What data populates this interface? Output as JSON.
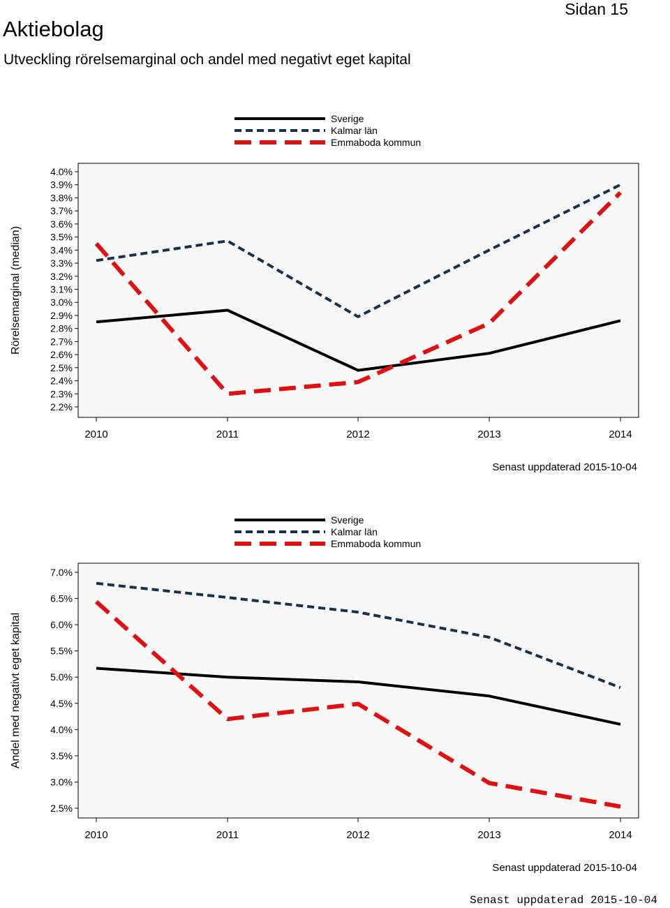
{
  "header": {
    "title": "Aktiebolag",
    "page_label": "Sidan 15",
    "subtitle": "Utveckling rörelsemarginal och andel med negativt eget kapital"
  },
  "footer": {
    "stamp": "Senast uppdaterad 2015-10-04"
  },
  "colors": {
    "sverige": "#000000",
    "kalmar": "#17324f",
    "emmaboda": "#e01010",
    "plot_bg": "#f8f8f8"
  },
  "chart_data": [
    {
      "type": "line",
      "title": "",
      "ylabel": "Rörelsemarginal (median)",
      "xlabel": "",
      "ylim": [
        2.2,
        4.0
      ],
      "yticks": [
        "2.2%",
        "2.3%",
        "2.4%",
        "2.5%",
        "2.6%",
        "2.7%",
        "2.8%",
        "2.9%",
        "3.0%",
        "3.1%",
        "3.2%",
        "3.3%",
        "3.4%",
        "3.5%",
        "3.6%",
        "3.7%",
        "3.8%",
        "3.9%",
        "4.0%"
      ],
      "ytick_values": [
        2.2,
        2.3,
        2.4,
        2.5,
        2.6,
        2.7,
        2.8,
        2.9,
        3.0,
        3.1,
        3.2,
        3.3,
        3.4,
        3.5,
        3.6,
        3.7,
        3.8,
        3.9,
        4.0
      ],
      "categories": [
        "2010",
        "2011",
        "2012",
        "2013",
        "2014"
      ],
      "series": [
        {
          "name": "Sverige",
          "key": "sverige",
          "values": [
            2.85,
            2.94,
            2.48,
            2.61,
            2.86
          ]
        },
        {
          "name": "Kalmar län",
          "key": "kalmar",
          "values": [
            3.32,
            3.47,
            2.89,
            3.4,
            3.9
          ]
        },
        {
          "name": "Emmaboda kommun",
          "key": "emmaboda",
          "values": [
            3.45,
            2.3,
            2.39,
            2.84,
            3.84
          ]
        }
      ],
      "updated": "Senast uppdaterad 2015-10-04"
    },
    {
      "type": "line",
      "title": "",
      "ylabel": "Andel med negativt eget kapital",
      "xlabel": "",
      "ylim": [
        2.5,
        7.0
      ],
      "yticks": [
        "2.5%",
        "3.0%",
        "3.5%",
        "4.0%",
        "4.5%",
        "5.0%",
        "5.5%",
        "6.0%",
        "6.5%",
        "7.0%"
      ],
      "ytick_values": [
        2.5,
        3.0,
        3.5,
        4.0,
        4.5,
        5.0,
        5.5,
        6.0,
        6.5,
        7.0
      ],
      "categories": [
        "2010",
        "2011",
        "2012",
        "2013",
        "2014"
      ],
      "series": [
        {
          "name": "Sverige",
          "key": "sverige",
          "values": [
            5.17,
            5.0,
            4.91,
            4.64,
            4.1
          ]
        },
        {
          "name": "Kalmar län",
          "key": "kalmar",
          "values": [
            6.79,
            6.52,
            6.24,
            5.76,
            4.8
          ]
        },
        {
          "name": "Emmaboda kommun",
          "key": "emmaboda",
          "values": [
            6.44,
            4.2,
            4.49,
            2.98,
            2.53
          ]
        }
      ],
      "updated": "Senast uppdaterad 2015-10-04"
    }
  ]
}
